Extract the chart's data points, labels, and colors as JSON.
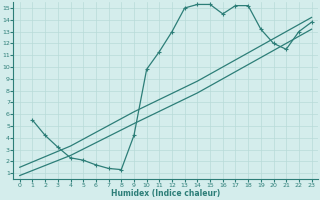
{
  "xlabel": "Humidex (Indice chaleur)",
  "xlim": [
    -0.5,
    23.5
  ],
  "ylim": [
    0.5,
    15.5
  ],
  "xticks": [
    0,
    1,
    2,
    3,
    4,
    5,
    6,
    7,
    8,
    9,
    10,
    11,
    12,
    13,
    14,
    15,
    16,
    17,
    18,
    19,
    20,
    21,
    22,
    23
  ],
  "yticks": [
    1,
    2,
    3,
    4,
    5,
    6,
    7,
    8,
    9,
    10,
    11,
    12,
    13,
    14,
    15
  ],
  "bg_color": "#d4edec",
  "line_color": "#2d7e78",
  "grid_color": "#b8dbd8",
  "curve1_x": [
    1,
    2,
    3,
    4,
    5,
    6,
    7,
    8,
    9,
    10,
    11,
    12,
    13,
    14,
    15,
    16,
    17,
    18,
    19,
    20,
    21,
    22,
    23
  ],
  "curve1_y": [
    5.5,
    4.2,
    3.2,
    2.3,
    2.1,
    1.7,
    1.4,
    1.3,
    4.2,
    9.8,
    11.3,
    13.0,
    15.0,
    15.3,
    15.3,
    14.5,
    15.2,
    15.2,
    13.2,
    12.0,
    11.5,
    13.0,
    13.8
  ],
  "curve2_x": [
    0,
    4,
    9,
    14,
    19,
    23
  ],
  "curve2_y": [
    0.8,
    2.5,
    5.2,
    7.8,
    10.8,
    13.2
  ],
  "curve3_x": [
    0,
    4,
    9,
    14,
    19,
    23
  ],
  "curve3_y": [
    1.5,
    3.3,
    6.2,
    8.8,
    11.8,
    14.2
  ]
}
